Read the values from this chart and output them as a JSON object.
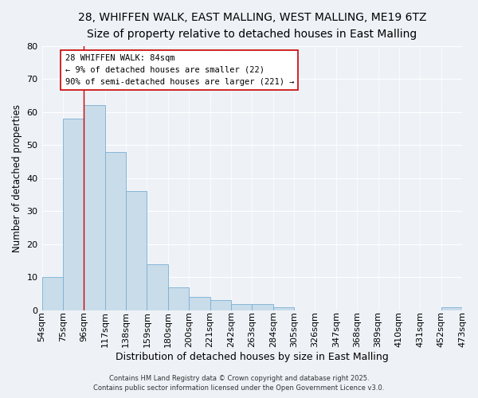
{
  "title": "28, WHIFFEN WALK, EAST MALLING, WEST MALLING, ME19 6TZ",
  "subtitle": "Size of property relative to detached houses in East Malling",
  "xlabel": "Distribution of detached houses by size in East Malling",
  "ylabel": "Number of detached properties",
  "bar_values": [
    10,
    58,
    62,
    48,
    36,
    14,
    7,
    4,
    3,
    2,
    2,
    1,
    0,
    0,
    0,
    0,
    0,
    0,
    0,
    1
  ],
  "bar_labels": [
    "54sqm",
    "75sqm",
    "96sqm",
    "117sqm",
    "138sqm",
    "159sqm",
    "180sqm",
    "200sqm",
    "221sqm",
    "242sqm",
    "263sqm",
    "284sqm",
    "305sqm",
    "326sqm",
    "347sqm",
    "368sqm",
    "389sqm",
    "410sqm",
    "431sqm",
    "452sqm",
    "473sqm"
  ],
  "bar_color": "#c9dcea",
  "bar_edge_color": "#7aafd4",
  "ylim": [
    0,
    80
  ],
  "yticks": [
    0,
    10,
    20,
    30,
    40,
    50,
    60,
    70,
    80
  ],
  "vline_x_bar_index": 1,
  "vline_color": "#cc0000",
  "annotation_title": "28 WHIFFEN WALK: 84sqm",
  "annotation_line2": "← 9% of detached houses are smaller (22)",
  "annotation_line3": "90% of semi-detached houses are larger (221) →",
  "annotation_box_facecolor": "#ffffff",
  "annotation_box_edgecolor": "#cc0000",
  "footer1": "Contains HM Land Registry data © Crown copyright and database right 2025.",
  "footer2": "Contains public sector information licensed under the Open Government Licence v3.0.",
  "background_color": "#eef2f7",
  "grid_color": "#ffffff",
  "title_fontsize": 10,
  "subtitle_fontsize": 9,
  "xlabel_fontsize": 9,
  "ylabel_fontsize": 8.5,
  "tick_fontsize": 8,
  "annot_fontsize": 7.5,
  "footer_fontsize": 6
}
